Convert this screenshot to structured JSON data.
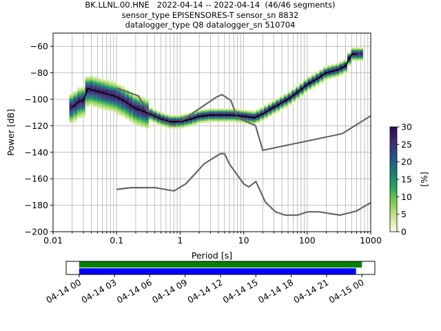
{
  "title_lines": [
    "BK.LLNL.00.HNE   2022-04-14 -- 2022-04-14  (46/46 segments)",
    "sensor_type EPISENSORES-T sensor_sn 8832",
    "datalogger_type Q8 datalogger_sn 510704"
  ],
  "chart_data": [
    {
      "type": "heatmap",
      "title": "",
      "xlabel": "Period [s]",
      "ylabel": "Power [dB]",
      "xscale": "log",
      "xlim": [
        0.01,
        1000
      ],
      "ylim": [
        -200,
        -50
      ],
      "grid": true,
      "x_tick_labels": [
        "0.01",
        "0.1",
        "1",
        "10",
        "100",
        "1000"
      ],
      "y_ticks": [
        -200,
        -180,
        -160,
        -140,
        -120,
        -100,
        -80,
        -60
      ],
      "y_tick_labels": [
        "−200",
        "−180",
        "−160",
        "−140",
        "−120",
        "−100",
        "−80",
        "−60"
      ],
      "colorbar": {
        "label": "[%]",
        "ticks": [
          0,
          5,
          10,
          15,
          20,
          25,
          30
        ],
        "range": [
          0,
          30
        ],
        "colors": [
          "#ffffe5",
          "#c8e58a",
          "#7ccb4f",
          "#25a35f",
          "#1a7a72",
          "#2b5289",
          "#3b2b72",
          "#2d0a4e"
        ]
      },
      "mode_curve": {
        "color": "#000000",
        "period": [
          0.02,
          0.025,
          0.03,
          0.035,
          0.05,
          0.1,
          0.15,
          0.2,
          0.3,
          0.5,
          0.7,
          1,
          1.5,
          2,
          3,
          5,
          7,
          10,
          15,
          20,
          30,
          50,
          70,
          100,
          150,
          200,
          300,
          400,
          500,
          600
        ],
        "power": [
          -106,
          -102,
          -101,
          -92,
          -94,
          -98,
          -103,
          -107,
          -110,
          -115,
          -117,
          -117,
          -115,
          -113,
          -112,
          -112,
          -112,
          -113,
          -114,
          -111,
          -106,
          -100,
          -95,
          -89,
          -84,
          -80,
          -78,
          -75,
          -66,
          -66
        ]
      },
      "noise_models": {
        "color": "#666666",
        "high": {
          "period": [
            0.1,
            0.22,
            0.32,
            0.8,
            3.8,
            4.6,
            6.3,
            7.9,
            15.4,
            20,
            354.8,
            1000
          ],
          "power": [
            -91.5,
            -97.4,
            -110.5,
            -120,
            -98,
            -96.5,
            -101,
            -113.5,
            -120,
            -138.5,
            -126,
            -112.5
          ]
        },
        "low": {
          "period": [
            0.1,
            0.17,
            0.4,
            0.8,
            1.24,
            2.4,
            4.3,
            5,
            6,
            10,
            12,
            15.6,
            21.9,
            31.6,
            45,
            70,
            101,
            154,
            328,
            600,
            1000
          ],
          "power": [
            -168,
            -166.7,
            -166.7,
            -169.2,
            -163.7,
            -148.6,
            -141.1,
            -141.1,
            -149,
            -163.8,
            -166.2,
            -162.1,
            -177.5,
            -185,
            -187.5,
            -187.5,
            -185,
            -185,
            -187.5,
            -184.4,
            -178
          ]
        }
      }
    },
    {
      "type": "bar",
      "title": "",
      "xlabel": "",
      "ylabel": "",
      "description_of_bars": "data coverage timeline",
      "x_tick_labels": [
        "04-14 00",
        "04-14 03",
        "04-14 06",
        "04-14 09",
        "04-14 12",
        "04-14 15",
        "04-14 18",
        "04-14 21",
        "04-15 00"
      ],
      "xlim_hours": [
        -1.1,
        25.1
      ],
      "series": [
        {
          "color": "#008000",
          "start_hour": 0,
          "end_hour": 24.0
        },
        {
          "color": "#0000ff",
          "start_hour": 0,
          "end_hour": 23.5
        }
      ]
    }
  ]
}
